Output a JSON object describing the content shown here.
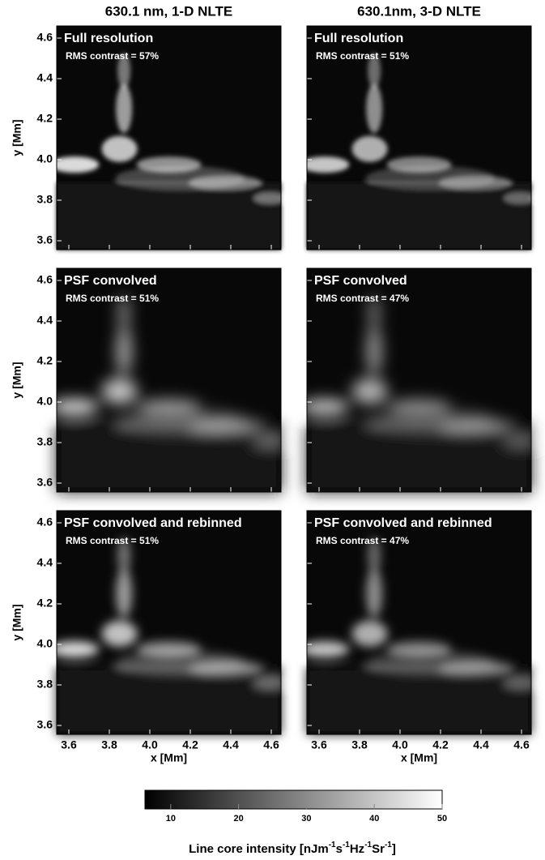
{
  "columns": [
    "630.1 nm, 1-D NLTE",
    "630.1nm, 3-D NLTE"
  ],
  "rows": [
    {
      "label": "Full resolution",
      "contrast": [
        "RMS contrast = 57%",
        "RMS contrast = 51%"
      ]
    },
    {
      "label": "PSF convolved",
      "contrast": [
        "RMS contrast = 51%",
        "RMS contrast = 47%"
      ]
    },
    {
      "label": "PSF convolved and rebinned",
      "contrast": [
        "RMS contrast = 51%",
        "RMS contrast = 47%"
      ]
    }
  ],
  "xlabel": "x [Mm]",
  "ylabel": "y [Mm]",
  "xlim": [
    3.54,
    4.648
  ],
  "ylim": [
    3.556,
    4.66
  ],
  "ticks": [
    3.6,
    3.8,
    {
      "value": 4.0,
      "label": "4.0"
    },
    4.2,
    4.4,
    4.6
  ],
  "colorbar": {
    "range": [
      6.2,
      50
    ],
    "ticks": [
      10,
      20,
      30,
      40,
      50
    ],
    "label_parts": [
      "Line core intensity [nJm",
      "-1",
      "s",
      "-1",
      "Hz",
      "-1",
      "Sr",
      "-1",
      "]"
    ]
  }
}
